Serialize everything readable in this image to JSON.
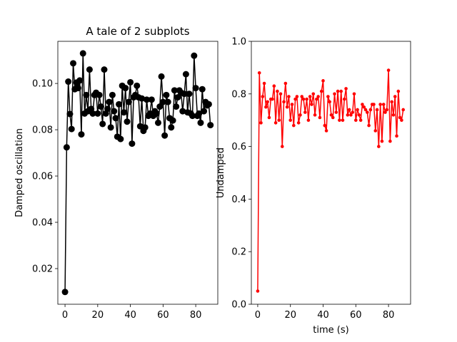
{
  "chart_data": [
    {
      "type": "line",
      "title": "A tale of 2 subplots",
      "ylabel": "Damped oscillation",
      "color": "#000000",
      "x": [
        0,
        1,
        2,
        3,
        4,
        5,
        6,
        7,
        8,
        9,
        10,
        11,
        12,
        13,
        14,
        15,
        16,
        17,
        18,
        19,
        20,
        21,
        22,
        23,
        24,
        25,
        26,
        27,
        28,
        29,
        30,
        31,
        32,
        33,
        34,
        35,
        36,
        37,
        38,
        39,
        40,
        41,
        42,
        43,
        44,
        45,
        46,
        47,
        48,
        49,
        50,
        51,
        52,
        53,
        54,
        55,
        56,
        57,
        58,
        59,
        60,
        61,
        62,
        63,
        64,
        65,
        66,
        67,
        68,
        69,
        70,
        71,
        72,
        73,
        74,
        75,
        76,
        77,
        78,
        79,
        80,
        81,
        82,
        83,
        84,
        85,
        86,
        87,
        88,
        89
      ],
      "values": [
        0.0099,
        0.0724,
        0.1008,
        0.0868,
        0.0803,
        0.1087,
        0.0975,
        0.1004,
        0.098,
        0.1013,
        0.078,
        0.113,
        0.087,
        0.095,
        0.088,
        0.106,
        0.089,
        0.087,
        0.095,
        0.096,
        0.087,
        0.095,
        0.09,
        0.0825,
        0.106,
        0.087,
        0.089,
        0.092,
        0.081,
        0.095,
        0.088,
        0.085,
        0.077,
        0.091,
        0.076,
        0.099,
        0.0875,
        0.098,
        0.0835,
        0.092,
        0.1005,
        0.074,
        0.094,
        0.095,
        0.099,
        0.094,
        0.0815,
        0.0935,
        0.0795,
        0.081,
        0.093,
        0.086,
        0.087,
        0.093,
        0.086,
        0.088,
        0.087,
        0.083,
        0.09,
        0.103,
        0.092,
        0.0775,
        0.095,
        0.092,
        0.085,
        0.081,
        0.084,
        0.097,
        0.09,
        0.094,
        0.097,
        0.096,
        0.088,
        0.0955,
        0.104,
        0.0875,
        0.0955,
        0.087,
        0.086,
        0.112,
        0.098,
        0.086,
        0.087,
        0.083,
        0.0975,
        0.088,
        0.092,
        0.0905,
        0.091,
        0.082
      ],
      "xlim": [
        -4.4,
        93.5
      ],
      "xticks": [
        0,
        20,
        40,
        60,
        80
      ],
      "ylim": [
        0.0046,
        0.1182
      ],
      "yticks": [
        0.02,
        0.04,
        0.06,
        0.08,
        {
          "value": 0.1,
          "label": "0.10"
        }
      ]
    },
    {
      "type": "line",
      "xlabel": "time (s)",
      "ylabel": "Undamped",
      "color": "#ff0000",
      "x": [
        0,
        1,
        2,
        3,
        4,
        5,
        6,
        7,
        8,
        9,
        10,
        11,
        12,
        13,
        14,
        15,
        16,
        17,
        18,
        19,
        20,
        21,
        22,
        23,
        24,
        25,
        26,
        27,
        28,
        29,
        30,
        31,
        32,
        33,
        34,
        35,
        36,
        37,
        38,
        39,
        40,
        41,
        42,
        43,
        44,
        45,
        46,
        47,
        48,
        49,
        50,
        51,
        52,
        53,
        54,
        55,
        56,
        57,
        58,
        59,
        60,
        61,
        62,
        63,
        64,
        65,
        66,
        67,
        68,
        69,
        70,
        71,
        72,
        73,
        74,
        75,
        76,
        77,
        78,
        79,
        80,
        81,
        82,
        83,
        84,
        85,
        86,
        87,
        88,
        89
      ],
      "values": [
        0.05,
        0.88,
        0.69,
        0.79,
        0.84,
        0.75,
        0.77,
        0.71,
        0.78,
        0.78,
        0.83,
        0.69,
        0.81,
        0.7,
        0.8,
        0.6,
        0.77,
        0.84,
        0.75,
        0.79,
        0.7,
        0.76,
        0.68,
        0.78,
        0.79,
        0.69,
        0.72,
        0.79,
        0.78,
        0.73,
        0.78,
        0.7,
        0.79,
        0.76,
        0.8,
        0.72,
        0.78,
        0.79,
        0.71,
        0.81,
        0.85,
        0.68,
        0.66,
        0.79,
        0.77,
        0.72,
        0.71,
        0.8,
        0.73,
        0.81,
        0.7,
        0.81,
        0.7,
        0.78,
        0.82,
        0.72,
        0.74,
        0.72,
        0.73,
        0.8,
        0.7,
        0.74,
        0.72,
        0.7,
        0.76,
        0.75,
        0.74,
        0.73,
        0.68,
        0.74,
        0.76,
        0.76,
        0.66,
        0.74,
        0.6,
        0.76,
        0.62,
        0.76,
        0.73,
        0.74,
        0.89,
        0.62,
        0.77,
        0.72,
        0.79,
        0.64,
        0.81,
        0.71,
        0.7,
        0.74
      ],
      "xlim": [
        -3.9,
        93.5
      ],
      "xticks": [
        0,
        20,
        40,
        60,
        80
      ],
      "ylim": [
        0,
        1
      ],
      "yticks": [
        {
          "value": 0,
          "label": "0.0"
        },
        {
          "value": 0.2,
          "label": "0.2"
        },
        {
          "value": 0.4,
          "label": "0.4"
        },
        {
          "value": 0.6,
          "label": "0.6"
        },
        {
          "value": 0.8,
          "label": "0.8"
        },
        {
          "value": 1,
          "label": "1.0"
        }
      ]
    }
  ]
}
